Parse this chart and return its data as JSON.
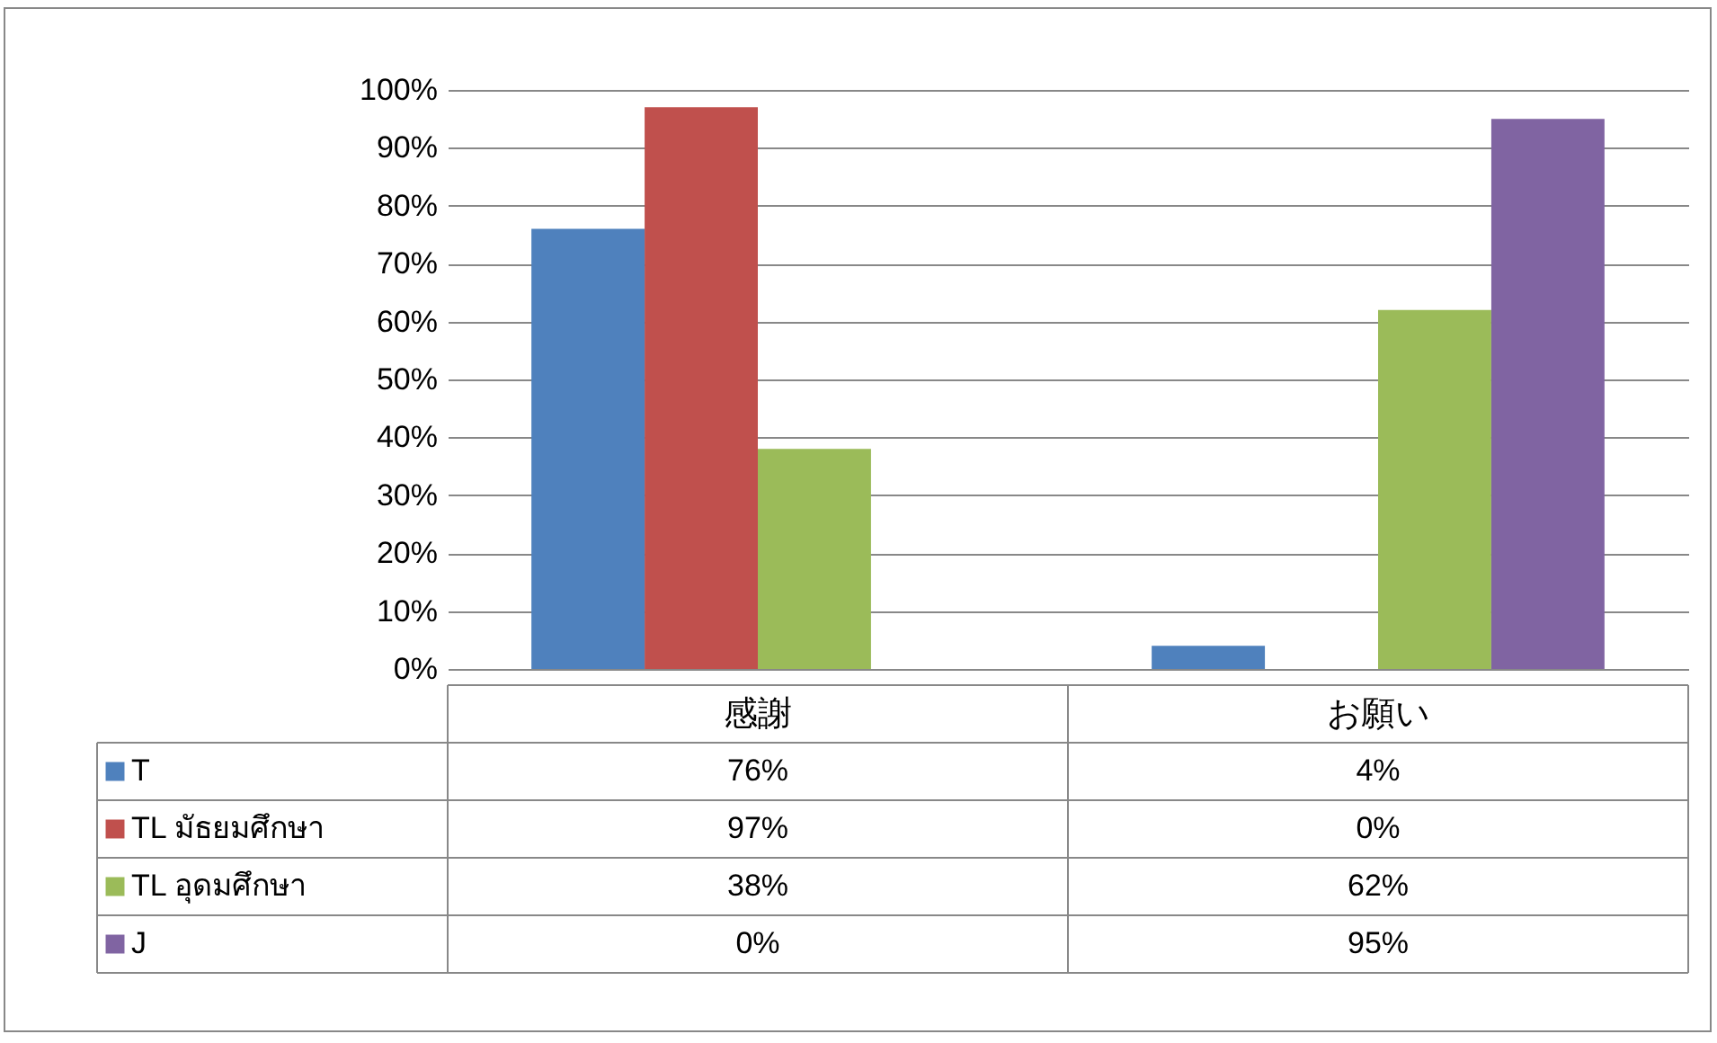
{
  "chart_data": {
    "type": "bar",
    "categories": [
      "感謝",
      "お願い"
    ],
    "series": [
      {
        "name": "T",
        "color": "#4f81bd",
        "values": [
          76,
          4
        ],
        "value_labels": [
          "76%",
          "4%"
        ]
      },
      {
        "name": "TL มัธยมศึกษา",
        "color": "#c0504d",
        "values": [
          97,
          0
        ],
        "value_labels": [
          "97%",
          "0%"
        ]
      },
      {
        "name": "TL อุดมศึกษา",
        "color": "#9bbb59",
        "values": [
          38,
          62
        ],
        "value_labels": [
          "38%",
          "62%"
        ]
      },
      {
        "name": "J",
        "color": "#8064a2",
        "values": [
          0,
          95
        ],
        "value_labels": [
          "0%",
          "95%"
        ]
      }
    ],
    "ylim": [
      0,
      100
    ],
    "yticks": [
      {
        "value": 0,
        "label": "0%"
      },
      {
        "value": 10,
        "label": "10%"
      },
      {
        "value": 20,
        "label": "20%"
      },
      {
        "value": 30,
        "label": "30%"
      },
      {
        "value": 40,
        "label": "40%"
      },
      {
        "value": 50,
        "label": "50%"
      },
      {
        "value": 60,
        "label": "60%"
      },
      {
        "value": 70,
        "label": "70%"
      },
      {
        "value": 80,
        "label": "80%"
      },
      {
        "value": 90,
        "label": "90%"
      },
      {
        "value": 100,
        "label": "100%"
      }
    ],
    "grid": "y",
    "legend": "bottom left"
  }
}
